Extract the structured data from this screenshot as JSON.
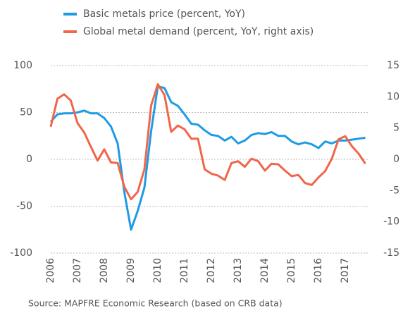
{
  "chart_data": {
    "type": "line",
    "source": "Source: MAPFRE Economic Research (based on CRB data)",
    "x": [
      2006,
      2006.25,
      2006.5,
      2006.75,
      2007,
      2007.25,
      2007.5,
      2007.75,
      2008,
      2008.25,
      2008.5,
      2008.75,
      2009,
      2009.25,
      2009.5,
      2009.75,
      2010,
      2010.25,
      2010.5,
      2010.75,
      2011,
      2011.25,
      2011.5,
      2011.75,
      2012,
      2012.25,
      2012.5,
      2012.75,
      2013,
      2013.25,
      2013.5,
      2013.75,
      2014,
      2014.25,
      2014.5,
      2014.75,
      2015,
      2015.25,
      2015.5,
      2015.75,
      2016,
      2016.25,
      2016.5,
      2016.75,
      2017,
      2017.25,
      2017.5,
      2017.75
    ],
    "series": [
      {
        "name": "Basic metals price (percent, YoY)",
        "color": "#1e9be6",
        "axis": "y",
        "values": [
          40,
          48,
          49,
          49,
          50,
          52,
          49,
          49,
          44,
          35,
          17,
          -35,
          -75,
          -55,
          -30,
          30,
          78,
          76,
          61,
          57,
          48,
          38,
          37,
          31,
          26,
          25,
          20,
          24,
          17,
          20,
          26,
          28,
          27,
          29,
          25,
          25,
          19,
          16,
          18,
          16,
          12,
          19,
          17,
          20,
          20,
          21,
          22,
          23
        ]
      },
      {
        "name": "Global metal demand (percent, YoY, right axis)",
        "color": "#f0664a",
        "axis": "y2",
        "values": [
          5.2,
          9.7,
          10.4,
          9.4,
          5.8,
          4.3,
          2,
          -0.2,
          1.6,
          -0.5,
          -0.6,
          -4.4,
          -6.4,
          -5.2,
          -1.6,
          8.6,
          12,
          10.3,
          4.4,
          5.4,
          4.8,
          3.3,
          3.3,
          -1.6,
          -2.3,
          -2.6,
          -3.3,
          -0.6,
          -0.3,
          -1.2,
          0.1,
          -0.3,
          -1.8,
          -0.7,
          -0.8,
          -1.8,
          -2.7,
          -2.5,
          -3.8,
          -4.1,
          -2.9,
          -1.9,
          0.1,
          3.2,
          3.7,
          2.1,
          0.9,
          -0.7
        ]
      }
    ],
    "xlim": [
      2006,
      2018
    ],
    "xticks": [
      2006,
      2007,
      2008,
      2009,
      2010,
      2011,
      2012,
      2013,
      2014,
      2015,
      2016,
      2017
    ],
    "ylim": [
      -100,
      100
    ],
    "yticks": [
      -100,
      -50,
      0,
      50,
      100
    ],
    "y2lim": [
      -15,
      15
    ],
    "y2ticks": [
      -15,
      -10,
      -5,
      0,
      5,
      10,
      15
    ],
    "grid": true,
    "legend": "top"
  }
}
